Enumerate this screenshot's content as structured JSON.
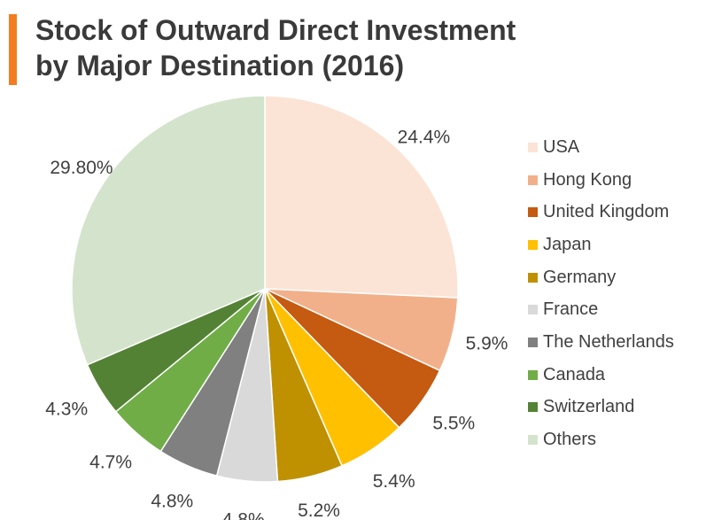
{
  "header": {
    "accent_color": "#F47C20",
    "title_line1": "Stock of Outward Direct Investment",
    "title_line2": "by Major Destination (2016)"
  },
  "chart_data": {
    "type": "pie",
    "title": "Stock of Outward Direct Investment by Major Destination (2016)",
    "start_angle": "12 o'clock",
    "direction": "clockwise",
    "legend_position": "right",
    "slices": [
      {
        "name": "USA",
        "value": 24.4,
        "label": "24.4%",
        "color": "#FBE4D6"
      },
      {
        "name": "Hong Kong",
        "value": 5.9,
        "label": "5.9%",
        "color": "#F2B08A"
      },
      {
        "name": "United Kingdom",
        "value": 5.5,
        "label": "5.5%",
        "color": "#C55A11"
      },
      {
        "name": "Japan",
        "value": 5.4,
        "label": "5.4%",
        "color": "#FFC000"
      },
      {
        "name": "Germany",
        "value": 5.2,
        "label": "5.2%",
        "color": "#BF9000"
      },
      {
        "name": "France",
        "value": 4.8,
        "label": "4.8%",
        "color": "#D9D9D9"
      },
      {
        "name": "The Netherlands",
        "value": 4.8,
        "label": "4.8%",
        "color": "#808080"
      },
      {
        "name": "Canada",
        "value": 4.7,
        "label": "4.7%",
        "color": "#70AD47"
      },
      {
        "name": "Switzerland",
        "value": 4.3,
        "label": "4.3%",
        "color": "#548235"
      },
      {
        "name": "Others",
        "value": 29.8,
        "label": "29.80%",
        "color": "#D4E3CC"
      }
    ]
  }
}
